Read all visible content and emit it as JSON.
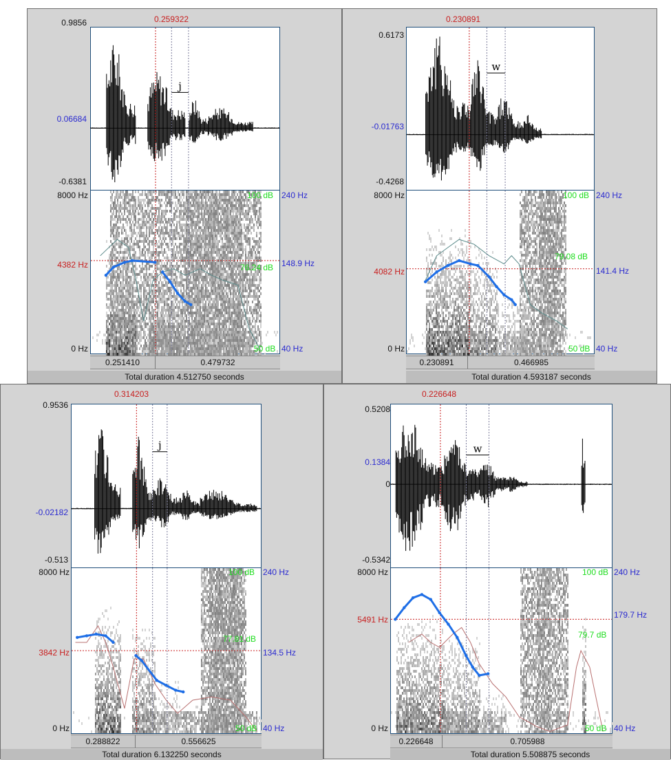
{
  "panels": [
    {
      "cursor_time": "0.259322",
      "amp_max": "0.9856",
      "amp_cursor": "0.06684",
      "amp_min": "-0.6381",
      "freq_top": "8000 Hz",
      "freq_cursor": "4382 Hz",
      "freq_bottom": "0 Hz",
      "db_top": "100 dB",
      "db_cursor": "76.24 dB",
      "db_bottom": "50 dB",
      "pitch_top": "240 Hz",
      "pitch_cursor": "148.9 Hz",
      "pitch_bottom": "40 Hz",
      "segment_label": "j",
      "sel_start": "0.251410",
      "sel_len": "0.479732",
      "total_duration": "Total duration 4.512750 seconds",
      "intensity_color": "#5a8a8a"
    },
    {
      "cursor_time": "0.230891",
      "amp_max": "0.6173",
      "amp_cursor": "-0.01763",
      "amp_min": "-0.4268",
      "freq_top": "8000 Hz",
      "freq_cursor": "4082 Hz",
      "freq_bottom": "0 Hz",
      "db_top": "100 dB",
      "db_cursor": "79.08 dB",
      "db_bottom": "50 dB",
      "pitch_top": "240 Hz",
      "pitch_cursor": "141.4 Hz",
      "pitch_bottom": "40 Hz",
      "segment_label": "w",
      "sel_start": "0.230891",
      "sel_len": "0.466985",
      "total_duration": "Total duration 4.593187 seconds",
      "intensity_color": "#5a8a8a"
    },
    {
      "cursor_time": "0.314203",
      "amp_max": "0.9536",
      "amp_cursor": "-0.02182",
      "amp_min": "-0.513",
      "freq_top": "8000 Hz",
      "freq_cursor": "3842 Hz",
      "freq_bottom": "0 Hz",
      "db_top": "100 dB",
      "db_cursor": "77.81 dB",
      "db_bottom": "50 dB",
      "pitch_top": "240 Hz",
      "pitch_cursor": "134.5 Hz",
      "pitch_bottom": "40 Hz",
      "segment_label": "j",
      "sel_start": "0.288822",
      "sel_len": "0.556625",
      "total_duration": "Total duration 6.132250 seconds",
      "intensity_color": "#b87070"
    },
    {
      "cursor_time": "0.226648",
      "amp_max": "0.5208",
      "amp_cursor": "0.1384",
      "amp_zero": "0",
      "amp_min": "-0.5342",
      "freq_top": "8000 Hz",
      "freq_cursor": "5491 Hz",
      "freq_bottom": "0 Hz",
      "db_top": "100 dB",
      "db_cursor": "79.7 dB",
      "db_bottom": "50 dB",
      "pitch_top": "240 Hz",
      "pitch_cursor": "179.7 Hz",
      "pitch_bottom": "40 Hz",
      "segment_label": "w",
      "sel_start": "0.226648",
      "sel_len": "0.705988",
      "total_duration": "Total duration 5.508875 seconds",
      "intensity_color": "#b87070"
    }
  ],
  "colors": {
    "cursor": "#c81e1e",
    "pitch": "#1e6ee6",
    "frame": "#1f4e7a"
  }
}
